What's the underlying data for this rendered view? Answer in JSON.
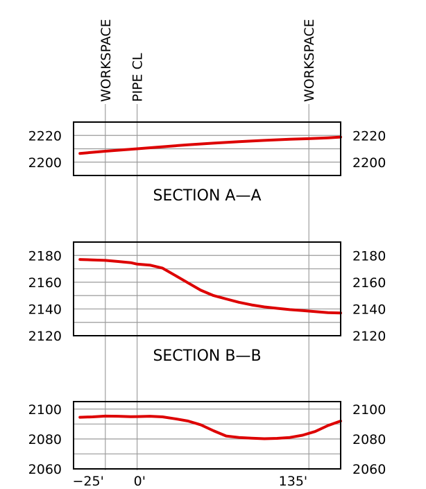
{
  "reference_lines": [
    {
      "label": "WORKSPACE",
      "station": -25
    },
    {
      "label": "PIPE CL",
      "station": 0
    },
    {
      "label": "WORKSPACE",
      "station": 135
    }
  ],
  "x_axis": {
    "range": [
      -50,
      160
    ],
    "ticks": [
      {
        "station": -25,
        "label": "−25'"
      },
      {
        "station": 0,
        "label": "0'"
      },
      {
        "station": 135,
        "label": "135'"
      }
    ]
  },
  "sections": [
    {
      "title": "SECTION A—A",
      "ylim": [
        2190,
        2230
      ],
      "grid_step": 10,
      "tick_labels": [
        "2220",
        "2200"
      ],
      "tick_values": [
        2220,
        2200
      ],
      "profile": {
        "color": "#dd0000",
        "stations": [
          -45,
          -25,
          0,
          20,
          40,
          60,
          80,
          100,
          120,
          135,
          150,
          160
        ],
        "elevations": [
          2206.5,
          2208.2,
          2210.0,
          2211.5,
          2213.0,
          2214.2,
          2215.3,
          2216.3,
          2217.1,
          2217.6,
          2218.2,
          2218.8
        ]
      }
    },
    {
      "title": "SECTION B—B",
      "ylim": [
        2120,
        2190
      ],
      "grid_step": 10,
      "tick_labels": [
        "2180",
        "2160",
        "2140",
        "2120"
      ],
      "tick_values": [
        2180,
        2160,
        2140,
        2120
      ],
      "profile": {
        "color": "#dd0000",
        "stations": [
          -45,
          -35,
          -25,
          -15,
          -5,
          0,
          10,
          20,
          30,
          40,
          50,
          60,
          70,
          80,
          90,
          100,
          110,
          120,
          130,
          140,
          150,
          160
        ],
        "elevations": [
          2177.0,
          2176.7,
          2176.3,
          2175.5,
          2174.6,
          2173.5,
          2172.8,
          2170.5,
          2165.0,
          2159.5,
          2154.0,
          2150.0,
          2147.5,
          2145.0,
          2143.0,
          2141.5,
          2140.5,
          2139.5,
          2138.8,
          2138.0,
          2137.2,
          2137.0
        ]
      }
    },
    {
      "title": "",
      "ylim": [
        2060,
        2105
      ],
      "grid_step": 10,
      "tick_labels": [
        "2100",
        "2080",
        "2060"
      ],
      "tick_values": [
        2100,
        2080,
        2060
      ],
      "profile": {
        "color": "#dd0000",
        "stations": [
          -45,
          -35,
          -25,
          -15,
          -5,
          0,
          10,
          20,
          30,
          40,
          50,
          60,
          70,
          80,
          90,
          100,
          110,
          120,
          130,
          140,
          150,
          160
        ],
        "elevations": [
          2094.5,
          2094.8,
          2095.3,
          2095.2,
          2094.9,
          2095.0,
          2095.2,
          2094.8,
          2093.5,
          2092.0,
          2089.5,
          2085.5,
          2082.0,
          2081.0,
          2080.5,
          2080.2,
          2080.4,
          2081.0,
          2082.5,
          2085.0,
          2089.0,
          2092.0
        ]
      }
    }
  ]
}
